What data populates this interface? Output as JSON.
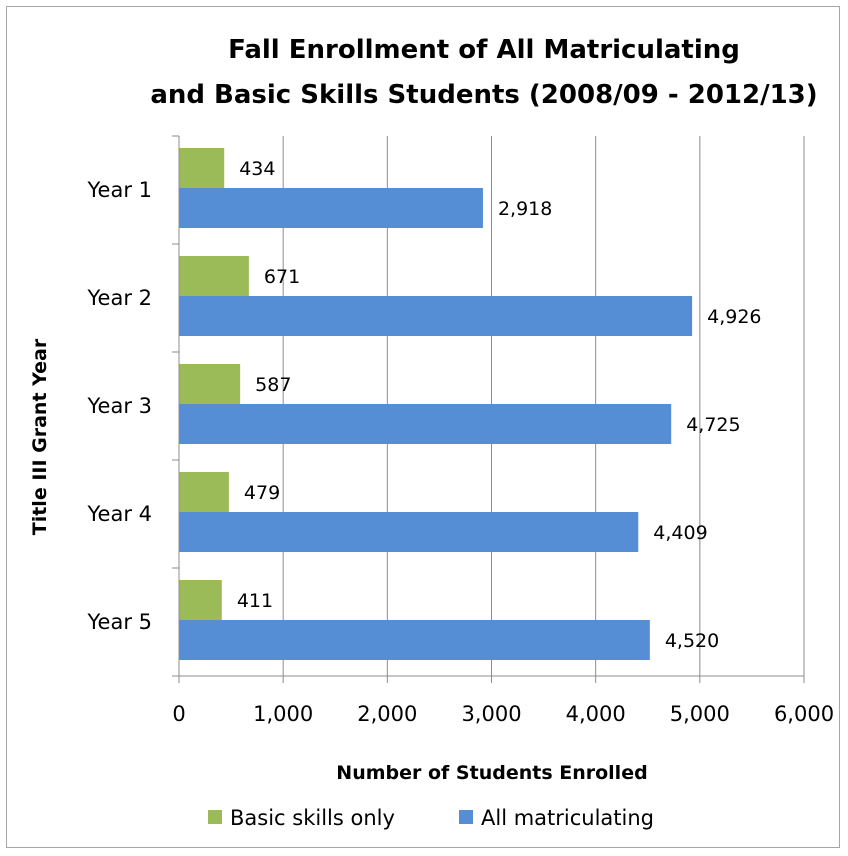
{
  "chart_data": {
    "type": "bar",
    "orientation": "horizontal",
    "title_lines": [
      "Fall Enrollment of All Matriculating",
      "and Basic Skills Students (2008/09 - 2012/13)"
    ],
    "xlabel": "Number of Students Enrolled",
    "ylabel": "Title III Grant Year",
    "categories": [
      "Year 1",
      "Year 2",
      "Year 3",
      "Year 4",
      "Year 5"
    ],
    "series": [
      {
        "name": "Basic skills only",
        "color": "#9bbb59",
        "values": [
          434,
          671,
          587,
          479,
          411
        ],
        "labels": [
          "434",
          "671",
          "587",
          "479",
          "411"
        ]
      },
      {
        "name": "All matriculating",
        "color": "#558ed5",
        "values": [
          2918,
          4926,
          4725,
          4409,
          4520
        ],
        "labels": [
          "2,918",
          "4,926",
          "4,725",
          "4,409",
          "4,520"
        ]
      }
    ],
    "xlim": [
      0,
      6000
    ],
    "xticks": [
      0,
      1000,
      2000,
      3000,
      4000,
      5000,
      6000
    ],
    "xtick_labels": [
      "0",
      "1,000",
      "2,000",
      "3,000",
      "4,000",
      "5,000",
      "6,000"
    ],
    "grid": "vertical",
    "legend_position": "bottom"
  }
}
